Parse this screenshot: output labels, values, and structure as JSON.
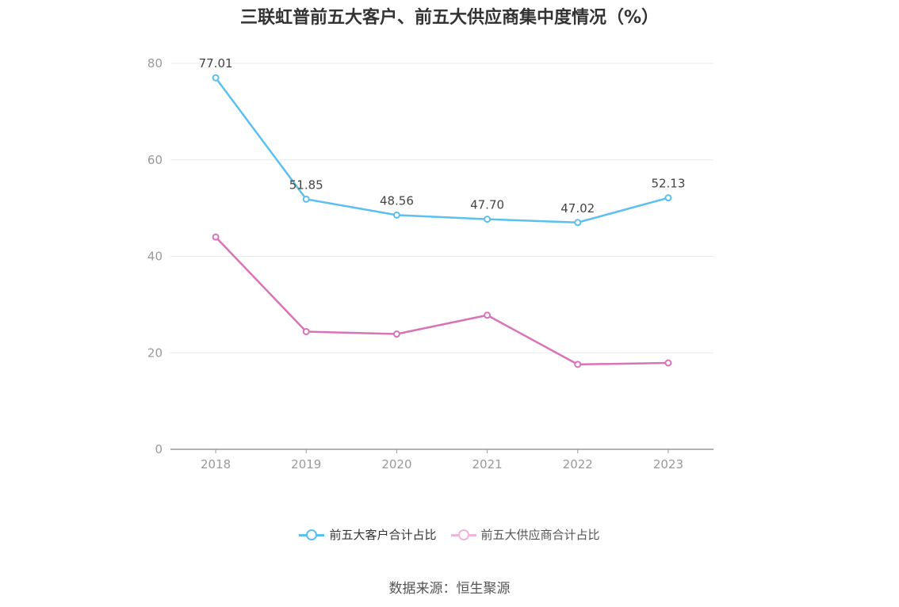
{
  "title": "三联虹普前五大客户、前五大供应商集中度情况（%）",
  "source": "数据来源：恒生聚源",
  "colors": {
    "customers": "#5bc0f0",
    "suppliers": "#d873b8",
    "grid": "#e8e8f0",
    "axis": "#999999"
  },
  "chart_data": {
    "type": "line",
    "title": "三联虹普前五大客户、前五大供应商集中度情况（%）",
    "categories": [
      "2018",
      "2019",
      "2020",
      "2021",
      "2022",
      "2023"
    ],
    "ylim": [
      0,
      80
    ],
    "yticks": [
      0,
      20,
      40,
      60,
      80
    ],
    "grid": true,
    "legend": "bottom",
    "series": [
      {
        "name": "前五大客户合计占比",
        "values": [
          77.01,
          51.85,
          48.56,
          47.7,
          47.02,
          52.13
        ],
        "labels": [
          "77.01",
          "51.85",
          "48.56",
          "47.70",
          "47.02",
          "52.13"
        ]
      },
      {
        "name": "前五大供应商合计占比",
        "values": [
          44.0,
          24.4,
          23.9,
          27.8,
          17.6,
          17.9
        ]
      }
    ]
  }
}
